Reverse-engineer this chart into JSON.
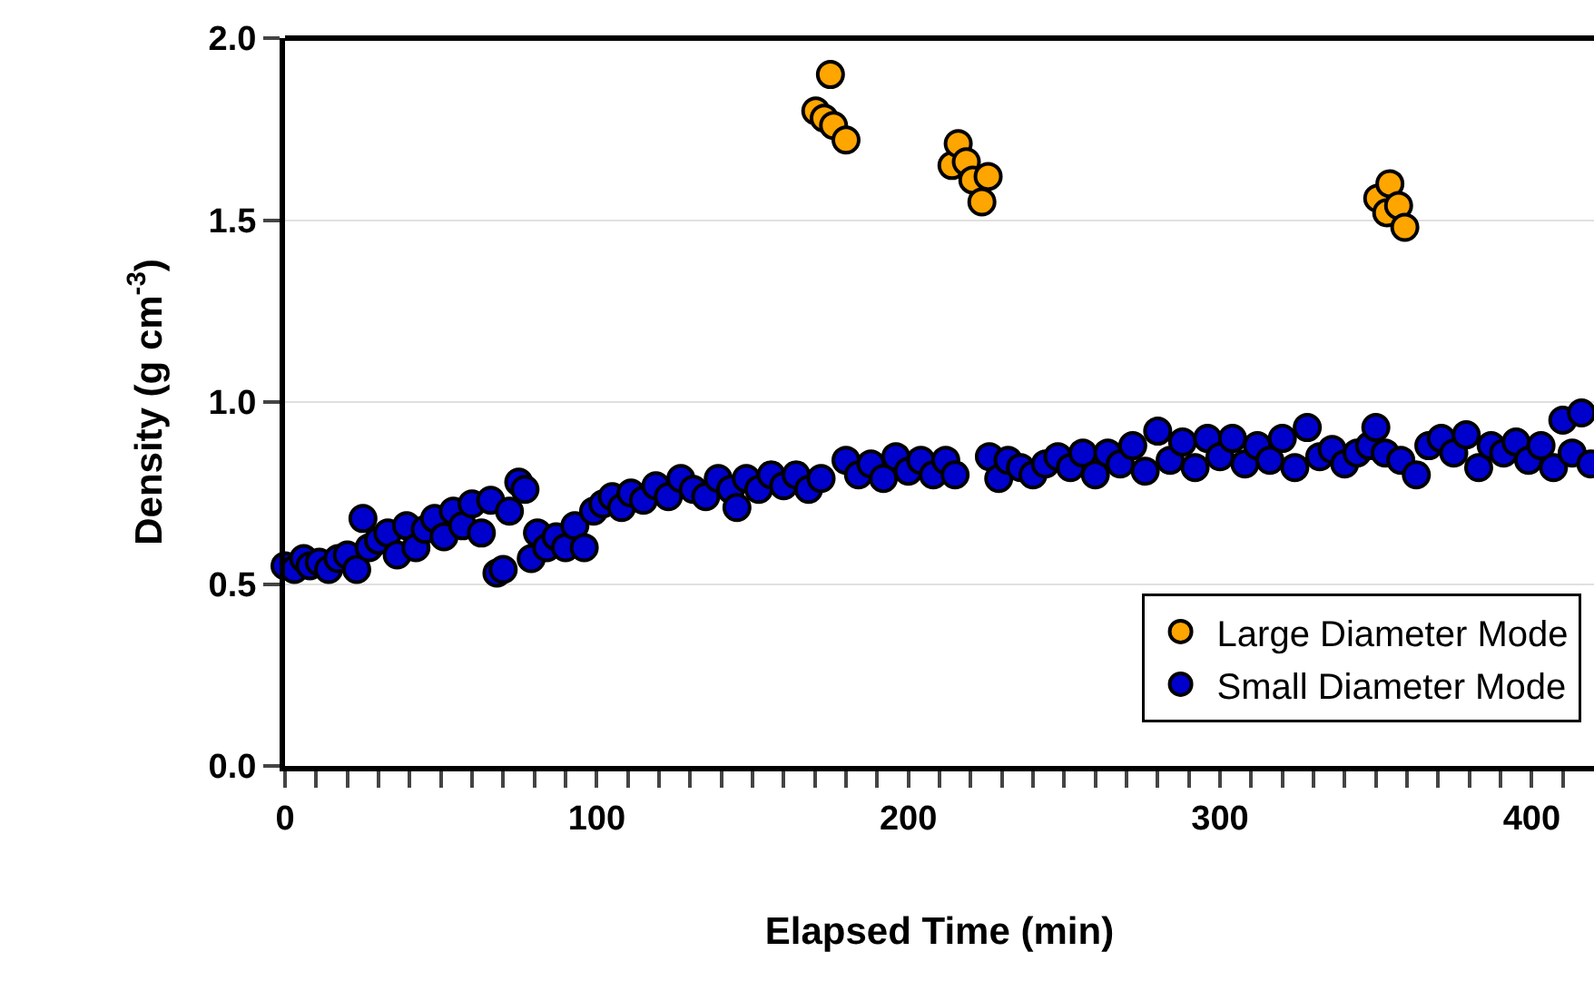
{
  "chart_data": {
    "type": "scatter",
    "xlabel": "Elapsed Time (min)",
    "ylabel": "Density (g cm$^{-3}$)",
    "xlim": [
      0,
      420
    ],
    "ylim": [
      0,
      2.0
    ],
    "xticks": [
      0,
      {
        "value": 10,
        "label": null
      },
      {
        "value": 20,
        "label": null
      },
      {
        "value": 30,
        "label": null
      },
      {
        "value": 40,
        "label": null
      },
      {
        "value": 50,
        "label": null
      },
      {
        "value": 60,
        "label": null
      },
      {
        "value": 70,
        "label": null
      },
      {
        "value": 80,
        "label": null
      },
      {
        "value": 90,
        "label": null
      },
      100,
      {
        "value": 110,
        "label": null
      },
      {
        "value": 120,
        "label": null
      },
      {
        "value": 130,
        "label": null
      },
      {
        "value": 140,
        "label": null
      },
      {
        "value": 150,
        "label": null
      },
      {
        "value": 160,
        "label": null
      },
      {
        "value": 170,
        "label": null
      },
      {
        "value": 180,
        "label": null
      },
      {
        "value": 190,
        "label": null
      },
      200,
      {
        "value": 210,
        "label": null
      },
      {
        "value": 220,
        "label": null
      },
      {
        "value": 230,
        "label": null
      },
      {
        "value": 240,
        "label": null
      },
      {
        "value": 250,
        "label": null
      },
      {
        "value": 260,
        "label": null
      },
      {
        "value": 270,
        "label": null
      },
      {
        "value": 280,
        "label": null
      },
      {
        "value": 290,
        "label": null
      },
      300,
      {
        "value": 310,
        "label": null
      },
      {
        "value": 320,
        "label": null
      },
      {
        "value": 330,
        "label": null
      },
      {
        "value": 340,
        "label": null
      },
      {
        "value": 350,
        "label": null
      },
      {
        "value": 360,
        "label": null
      },
      {
        "value": 370,
        "label": null
      },
      {
        "value": 380,
        "label": null
      },
      {
        "value": 390,
        "label": null
      },
      400,
      {
        "value": 410,
        "label": null
      }
    ],
    "yticks": [
      {
        "value": 0,
        "label": "0.0"
      },
      0.5,
      {
        "value": 1.0,
        "label": "1.0"
      },
      1.5,
      {
        "value": 2.0,
        "label": "2.0"
      }
    ],
    "grid": "y",
    "legend": "bottom right",
    "marker": "circle",
    "series": [
      {
        "name": "Large Diameter Mode",
        "color": "#ffa500",
        "x": [
          170.3,
          173,
          175,
          176,
          180,
          214,
          216,
          218.6,
          220.7,
          223.6,
          225.6,
          350.6,
          353.5,
          354.5,
          357.3,
          359.3
        ],
        "values": [
          1.8,
          1.78,
          1.9,
          1.76,
          1.72,
          1.65,
          1.71,
          1.66,
          1.61,
          1.55,
          1.62,
          1.56,
          1.52,
          1.6,
          1.54,
          1.48
        ]
      },
      {
        "name": "Small Diameter Mode",
        "color": "#0000cc",
        "x": [
          0,
          3,
          6,
          8,
          11,
          14,
          17,
          20,
          23,
          25,
          27,
          30,
          33,
          36,
          39,
          42,
          45,
          48,
          51,
          54,
          57,
          60,
          63,
          66,
          68,
          70,
          72,
          75,
          77,
          79,
          81,
          84,
          87,
          90,
          93,
          96,
          99,
          102,
          105,
          108,
          111,
          115,
          119,
          123,
          127,
          131,
          135,
          139,
          143,
          145,
          148,
          152,
          156,
          160,
          164,
          168,
          172,
          180,
          184,
          188,
          192,
          196,
          200,
          204,
          208,
          212,
          215,
          226,
          229,
          232,
          236,
          240,
          244,
          248,
          252,
          256,
          260,
          264,
          268,
          272,
          276,
          280,
          284,
          288,
          292,
          296,
          300,
          304,
          308,
          312,
          316,
          320,
          324,
          328,
          332,
          336,
          340,
          344,
          348,
          350,
          353,
          358,
          363,
          367,
          371,
          375,
          379,
          383,
          387,
          391,
          395,
          399,
          403,
          407,
          410,
          413,
          416,
          419
        ],
        "values": [
          0.55,
          0.54,
          0.57,
          0.55,
          0.56,
          0.54,
          0.57,
          0.58,
          0.54,
          0.68,
          0.6,
          0.62,
          0.64,
          0.58,
          0.66,
          0.6,
          0.65,
          0.68,
          0.63,
          0.7,
          0.66,
          0.72,
          0.64,
          0.73,
          0.53,
          0.54,
          0.7,
          0.78,
          0.76,
          0.57,
          0.64,
          0.6,
          0.63,
          0.6,
          0.66,
          0.6,
          0.7,
          0.72,
          0.74,
          0.71,
          0.75,
          0.73,
          0.77,
          0.74,
          0.79,
          0.76,
          0.74,
          0.79,
          0.76,
          0.71,
          0.79,
          0.76,
          0.8,
          0.77,
          0.8,
          0.76,
          0.79,
          0.84,
          0.8,
          0.83,
          0.79,
          0.85,
          0.81,
          0.84,
          0.8,
          0.84,
          0.8,
          0.85,
          0.79,
          0.84,
          0.82,
          0.8,
          0.83,
          0.85,
          0.82,
          0.86,
          0.8,
          0.86,
          0.83,
          0.88,
          0.81,
          0.92,
          0.84,
          0.89,
          0.82,
          0.9,
          0.85,
          0.9,
          0.83,
          0.88,
          0.84,
          0.9,
          0.82,
          0.93,
          0.85,
          0.87,
          0.83,
          0.86,
          0.88,
          0.93,
          0.86,
          0.84,
          0.8,
          0.88,
          0.9,
          0.86,
          0.91,
          0.82,
          0.88,
          0.86,
          0.89,
          0.84,
          0.88,
          0.82,
          0.95,
          0.86,
          0.97,
          0.83
        ]
      }
    ]
  }
}
